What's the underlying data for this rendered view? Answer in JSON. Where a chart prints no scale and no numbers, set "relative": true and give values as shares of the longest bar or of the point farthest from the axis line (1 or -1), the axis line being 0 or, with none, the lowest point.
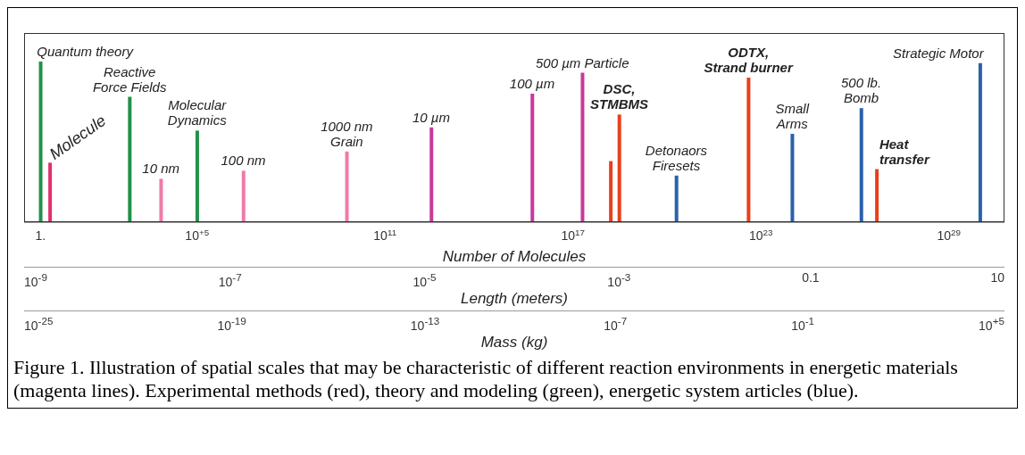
{
  "chart_data": {
    "type": "bar",
    "relative": true,
    "log": "x",
    "x": [
      1,
      2,
      700,
      7000,
      100000.0,
      3000000.0,
      6000000000.0,
      3000000000000.0,
      5000000000000000.0,
      2e+17,
      1.6e+18,
      3e+18,
      2e+20,
      4e+22,
      1e+24,
      1.6e+26,
      5e+26,
      1e+30
    ],
    "values": [
      1.0,
      0.37,
      0.78,
      0.27,
      0.57,
      0.32,
      0.44,
      0.59,
      0.8,
      0.93,
      0.38,
      0.67,
      0.29,
      0.9,
      0.55,
      0.71,
      0.33,
      0.99
    ],
    "colors": [
      "#23914a",
      "#e0306a",
      "#23914a",
      "#f07aa8",
      "#23914a",
      "#f07aa8",
      "#f07aa8",
      "#c8399a",
      "#c8399a",
      "#c8399a",
      "#e8401c",
      "#e8401c",
      "#2a62aa",
      "#e8401c",
      "#2a62aa",
      "#2a62aa",
      "#e8401c",
      "#2a62aa"
    ],
    "xlim": [
      0.3,
      6e+30
    ],
    "xticks": [
      {
        "value": 1,
        "label": "1."
      },
      {
        "value": 100000.0,
        "label": "10$^{+5}$"
      },
      {
        "value": 100000000000.0,
        "label": "10$^{11}$"
      },
      {
        "value": 1e+17,
        "label": "10$^{17}$"
      },
      {
        "value": 1e+23,
        "label": "10$^{23}$"
      },
      {
        "value": 1e+29,
        "label": "10$^{29}$"
      }
    ],
    "xlabel": "Number of Molecules",
    "annotations": [
      {
        "text": "Quantum theory",
        "x": 1,
        "y": 1.0
      },
      {
        "text": "Molecule",
        "x": 2,
        "y": 0.37
      },
      {
        "text": "Reactive\nForce Fields",
        "x": 700,
        "y": 0.78
      },
      {
        "text": "10 nm",
        "x": 7000,
        "y": 0.27
      },
      {
        "text": "Molecular\nDynamics",
        "x": 100000.0,
        "y": 0.57
      },
      {
        "text": "100 nm",
        "x": 3000000.0,
        "y": 0.32
      },
      {
        "text": "1000 nm\nGrain",
        "x": 6000000000.0,
        "y": 0.44
      },
      {
        "text": "10 µm",
        "x": 3000000000000.0,
        "y": 0.59
      },
      {
        "text": "100 µm",
        "x": 5000000000000000.0,
        "y": 0.8
      },
      {
        "text": "500 µm Particle",
        "x": 2e+17,
        "y": 0.93
      },
      {
        "text": "DSC,\nSTMBMS",
        "x": 3e+18,
        "y": 0.67
      },
      {
        "text": "Detonaors\nFiresets",
        "x": 2e+20,
        "y": 0.29
      },
      {
        "text": "ODTX,\nStrand burner",
        "x": 4e+22,
        "y": 0.9
      },
      {
        "text": "Small\nArms",
        "x": 1e+24,
        "y": 0.55
      },
      {
        "text": "500 lb.\nBomb",
        "x": 1.6e+26,
        "y": 0.71
      },
      {
        "text": "Heat\ntransfer",
        "x": 5e+26,
        "y": 0.33
      },
      {
        "text": "Strategic Motor",
        "x": 1e+30,
        "y": 0.99
      },
      "10$^{-9}$",
      "10$^{-7}$",
      "10$^{-5}$",
      "10$^{-3}$",
      "0.1",
      "10",
      "Length (meters)",
      "10$^{-25}$",
      "10$^{-19}$",
      "10$^{-13}$",
      "10$^{-7}$",
      "10$^{-1}$",
      "10$^{+5}$",
      "Mass (kg)",
      "Figure 1.  Illustration of spatial scales that may be characteristic of different reaction environments in energetic materials (magenta lines). Experimental methods (red), theory and modeling (green), energetic system articles (blue)."
    ]
  }
}
